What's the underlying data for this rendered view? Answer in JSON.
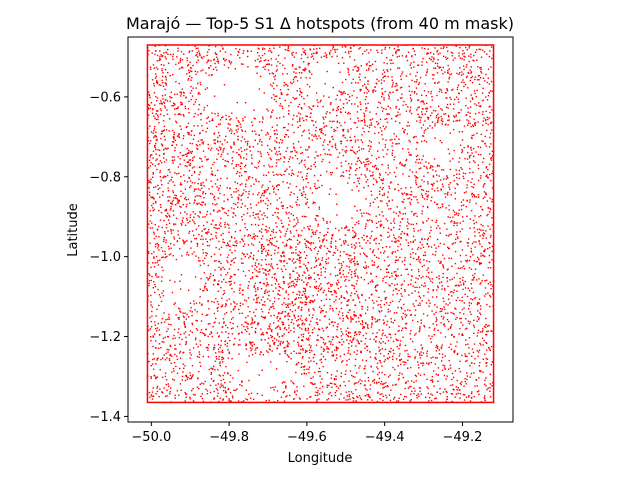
{
  "chart_data": {
    "type": "scatter",
    "title": "Marajó — Top-5 S1 Δ hotspots (from 40 m mask)",
    "xlabel": "Longitude",
    "ylabel": "Latitude",
    "xlim": [
      -50.06,
      -49.07
    ],
    "ylim": [
      -1.414,
      -0.45
    ],
    "xticks": [
      -50.0,
      -49.8,
      -49.6,
      -49.4,
      -49.2
    ],
    "xtick_labels": [
      "−50.0",
      "−49.8",
      "−49.6",
      "−49.4",
      "−49.2"
    ],
    "yticks": [
      -0.6,
      -0.8,
      -1.0,
      -1.2,
      -1.4
    ],
    "ytick_labels": [
      "−0.6",
      "−0.8",
      "−1.0",
      "−1.2",
      "−1.4"
    ],
    "grid": false,
    "legend": "none",
    "marker_color": "#ff0000",
    "bounding_rectangle": {
      "lon_min": -50.01,
      "lon_max": -49.12,
      "lat_min": -1.365,
      "lat_max": -0.47
    },
    "point_density_note": "dense cloud of hotspot pixels covering the rectangle"
  }
}
